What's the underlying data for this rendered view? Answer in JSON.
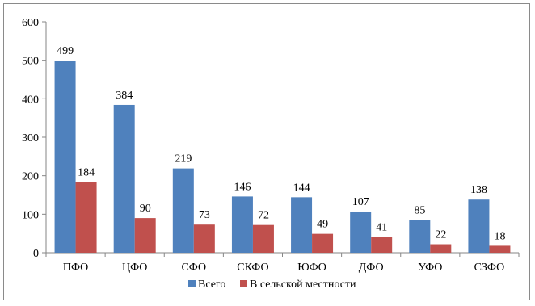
{
  "chart_data": {
    "type": "bar",
    "categories": [
      "ПФО",
      "ЦФО",
      "СФО",
      "СКФО",
      "ЮФО",
      "ДФО",
      "УФО",
      "СЗФО"
    ],
    "series": [
      {
        "name": "Всего",
        "color": "#4f81bd",
        "values": [
          499,
          384,
          219,
          146,
          144,
          107,
          85,
          138
        ]
      },
      {
        "name": "В сельской местности",
        "color": "#c0504d",
        "values": [
          184,
          90,
          73,
          72,
          49,
          41,
          22,
          18
        ]
      }
    ],
    "y_ticks": [
      "0",
      "100",
      "200",
      "300",
      "400",
      "500",
      "600"
    ],
    "ylim": [
      0,
      600
    ],
    "grid": false,
    "legend_position": "bottom",
    "title": "",
    "xlabel": "",
    "ylabel": ""
  }
}
